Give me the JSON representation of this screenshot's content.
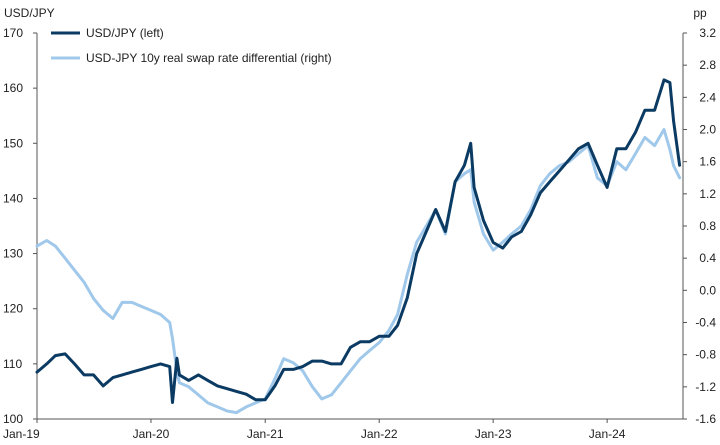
{
  "chart_data": {
    "type": "line",
    "left_axis": {
      "label": "USD/JPY",
      "ylim": [
        100,
        170
      ],
      "ticks": [
        100,
        110,
        120,
        130,
        140,
        150,
        160,
        170
      ]
    },
    "right_axis": {
      "label": "pp",
      "ylim": [
        -1.6,
        3.2
      ],
      "ticks": [
        -1.6,
        -1.2,
        -0.8,
        -0.4,
        0.0,
        0.4,
        0.8,
        1.2,
        1.6,
        2.0,
        2.4,
        2.8,
        3.2
      ],
      "tick_labels": [
        "-1.6",
        "-1.2",
        "-0.8",
        "-0.4",
        "0.0",
        "0.4",
        "0.8",
        "1.2",
        "1.6",
        "2.0",
        "2.4",
        "2.8",
        "3.2"
      ]
    },
    "x_axis": {
      "range": [
        "2019-01-01",
        "2024-08-31"
      ],
      "ticks": [
        "2019-01-01",
        "2020-01-01",
        "2021-01-01",
        "2022-01-01",
        "2023-01-01",
        "2024-01-01"
      ],
      "tick_labels": [
        "Jan-19",
        "Jan-20",
        "Jan-21",
        "Jan-22",
        "Jan-23",
        "Jan-24"
      ]
    },
    "grid": false,
    "legend_position": "top-left",
    "series": [
      {
        "name": "USD/JPY (left)",
        "axis": "left",
        "color": "#0b3a63",
        "x": [
          "2019-01-01",
          "2019-02-01",
          "2019-03-01",
          "2019-04-01",
          "2019-05-01",
          "2019-06-01",
          "2019-07-01",
          "2019-08-01",
          "2019-09-01",
          "2019-10-01",
          "2019-11-01",
          "2019-12-01",
          "2020-01-01",
          "2020-02-01",
          "2020-03-01",
          "2020-03-10",
          "2020-03-24",
          "2020-04-01",
          "2020-05-01",
          "2020-06-01",
          "2020-07-01",
          "2020-08-01",
          "2020-09-01",
          "2020-10-01",
          "2020-11-01",
          "2020-12-01",
          "2021-01-01",
          "2021-02-01",
          "2021-03-01",
          "2021-04-01",
          "2021-05-01",
          "2021-06-01",
          "2021-07-01",
          "2021-08-01",
          "2021-09-01",
          "2021-10-01",
          "2021-11-01",
          "2021-12-01",
          "2022-01-01",
          "2022-02-01",
          "2022-03-01",
          "2022-04-01",
          "2022-05-01",
          "2022-06-01",
          "2022-07-01",
          "2022-08-01",
          "2022-09-01",
          "2022-10-01",
          "2022-10-21",
          "2022-11-01",
          "2022-12-01",
          "2023-01-01",
          "2023-02-01",
          "2023-03-01",
          "2023-04-01",
          "2023-05-01",
          "2023-06-01",
          "2023-07-01",
          "2023-08-01",
          "2023-09-01",
          "2023-10-01",
          "2023-11-01",
          "2023-12-01",
          "2024-01-01",
          "2024-02-01",
          "2024-03-01",
          "2024-04-01",
          "2024-05-01",
          "2024-06-01",
          "2024-07-01",
          "2024-07-20",
          "2024-08-01",
          "2024-08-20"
        ],
        "values": [
          108.5,
          110.0,
          111.5,
          111.8,
          110.0,
          108.0,
          108.0,
          106.0,
          107.5,
          108.0,
          108.5,
          109.0,
          109.5,
          110.0,
          109.5,
          103.0,
          111.0,
          108.0,
          107.0,
          108.0,
          107.0,
          106.0,
          105.5,
          105.0,
          104.5,
          103.5,
          103.5,
          106.0,
          109.0,
          109.0,
          109.5,
          110.5,
          110.5,
          110.0,
          110.0,
          113.0,
          114.0,
          114.0,
          115.0,
          115.0,
          117.0,
          122.0,
          130.0,
          134.0,
          138.0,
          134.0,
          143.0,
          146.0,
          150.0,
          142.0,
          136.0,
          132.0,
          131.0,
          133.0,
          134.0,
          137.0,
          141.0,
          143.0,
          145.0,
          147.0,
          149.0,
          150.0,
          146.0,
          142.0,
          149.0,
          149.0,
          152.0,
          156.0,
          156.0,
          161.5,
          161.0,
          154.0,
          146.0
        ]
      },
      {
        "name": "USD-JPY 10y real swap rate differential (right)",
        "axis": "right",
        "color": "#9fc8ea",
        "x": [
          "2019-01-01",
          "2019-02-01",
          "2019-03-01",
          "2019-04-01",
          "2019-05-01",
          "2019-06-01",
          "2019-07-01",
          "2019-08-01",
          "2019-09-01",
          "2019-10-01",
          "2019-11-01",
          "2019-12-01",
          "2020-01-01",
          "2020-02-01",
          "2020-03-01",
          "2020-03-10",
          "2020-03-24",
          "2020-04-01",
          "2020-05-01",
          "2020-06-01",
          "2020-07-01",
          "2020-08-01",
          "2020-09-01",
          "2020-10-01",
          "2020-11-01",
          "2020-12-01",
          "2021-01-01",
          "2021-02-01",
          "2021-03-01",
          "2021-04-01",
          "2021-05-01",
          "2021-06-01",
          "2021-07-01",
          "2021-08-01",
          "2021-09-01",
          "2021-10-01",
          "2021-11-01",
          "2021-12-01",
          "2022-01-01",
          "2022-02-01",
          "2022-03-01",
          "2022-04-01",
          "2022-05-01",
          "2022-06-01",
          "2022-07-01",
          "2022-08-01",
          "2022-09-01",
          "2022-10-01",
          "2022-10-21",
          "2022-11-01",
          "2022-12-01",
          "2023-01-01",
          "2023-02-01",
          "2023-03-01",
          "2023-04-01",
          "2023-05-01",
          "2023-06-01",
          "2023-07-01",
          "2023-08-01",
          "2023-09-01",
          "2023-10-01",
          "2023-11-01",
          "2023-12-01",
          "2024-01-01",
          "2024-02-01",
          "2024-03-01",
          "2024-04-01",
          "2024-05-01",
          "2024-06-01",
          "2024-07-01",
          "2024-07-20",
          "2024-08-01",
          "2024-08-20"
        ],
        "values": [
          0.55,
          0.62,
          0.55,
          0.4,
          0.25,
          0.1,
          -0.1,
          -0.25,
          -0.35,
          -0.15,
          -0.15,
          -0.2,
          -0.25,
          -0.3,
          -0.4,
          -0.6,
          -1.0,
          -1.15,
          -1.2,
          -1.3,
          -1.4,
          -1.45,
          -1.5,
          -1.52,
          -1.45,
          -1.4,
          -1.35,
          -1.1,
          -0.85,
          -0.9,
          -1.0,
          -1.2,
          -1.35,
          -1.3,
          -1.15,
          -1.0,
          -0.85,
          -0.75,
          -0.65,
          -0.5,
          -0.3,
          0.2,
          0.6,
          0.8,
          1.0,
          0.7,
          1.35,
          1.45,
          1.5,
          1.1,
          0.7,
          0.5,
          0.6,
          0.7,
          0.8,
          1.0,
          1.3,
          1.45,
          1.55,
          1.6,
          1.7,
          1.8,
          1.4,
          1.3,
          1.6,
          1.5,
          1.7,
          1.9,
          1.8,
          2.0,
          1.75,
          1.55,
          1.4
        ]
      }
    ]
  }
}
